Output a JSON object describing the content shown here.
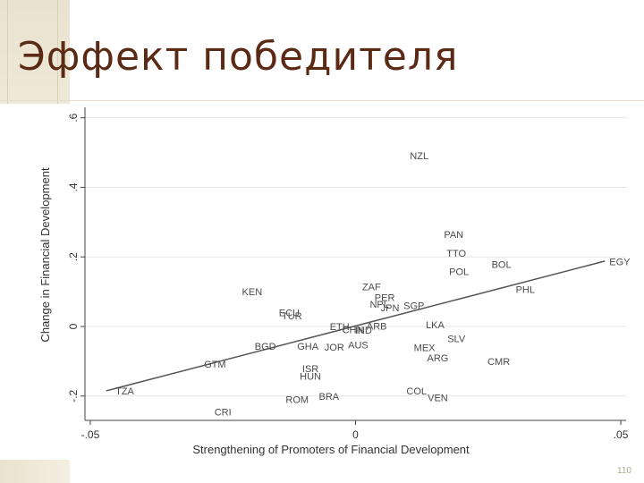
{
  "slide": {
    "title": "Эффект победителя",
    "page_number": "110"
  },
  "chart_data": {
    "type": "scatter",
    "title": "",
    "xlabel": "Strengthening of Promoters of Financial Development",
    "ylabel": "Change in Financial Development",
    "xlim": [
      -0.051,
      0.051
    ],
    "ylim": [
      -0.27,
      0.63
    ],
    "xticks": [
      -0.05,
      0,
      0.05
    ],
    "xtick_labels": [
      "-.05",
      "0",
      ".05"
    ],
    "yticks": [
      -0.2,
      0,
      0.2,
      0.4,
      0.6
    ],
    "ytick_labels": [
      "-.2",
      "0",
      ".2",
      ".4",
      ".6"
    ],
    "grid": "horizontal",
    "fit_line": {
      "x": [
        -0.047,
        0.047
      ],
      "y": [
        -0.185,
        0.188
      ]
    },
    "points": [
      {
        "label": "NZL",
        "x": 0.012,
        "y": 0.488
      },
      {
        "label": "PAN",
        "x": 0.0185,
        "y": 0.262
      },
      {
        "label": "TTO",
        "x": 0.019,
        "y": 0.208
      },
      {
        "label": "POL",
        "x": 0.0195,
        "y": 0.155
      },
      {
        "label": "BOL",
        "x": 0.0275,
        "y": 0.176
      },
      {
        "label": "EGY",
        "x": 0.0498,
        "y": 0.183
      },
      {
        "label": "PHL",
        "x": 0.032,
        "y": 0.104
      },
      {
        "label": "KEN",
        "x": -0.0195,
        "y": 0.098
      },
      {
        "label": "ZAF",
        "x": 0.003,
        "y": 0.111
      },
      {
        "label": "PER",
        "x": 0.0055,
        "y": 0.081
      },
      {
        "label": "NPL",
        "x": 0.0045,
        "y": 0.061
      },
      {
        "label": "SGP",
        "x": 0.011,
        "y": 0.058
      },
      {
        "label": "JPN",
        "x": 0.0065,
        "y": 0.051
      },
      {
        "label": "ECU",
        "x": -0.0125,
        "y": 0.037
      },
      {
        "label": "TUR",
        "x": -0.012,
        "y": 0.028
      },
      {
        "label": "ETH",
        "x": -0.003,
        "y": -0.003
      },
      {
        "label": "CHN",
        "x": -0.0005,
        "y": -0.012
      },
      {
        "label": "IND",
        "x": 0.0015,
        "y": -0.013
      },
      {
        "label": "ARB",
        "x": 0.004,
        "y": -0.001
      },
      {
        "label": "LKA",
        "x": 0.015,
        "y": 0.002
      },
      {
        "label": "SLV",
        "x": 0.019,
        "y": -0.037
      },
      {
        "label": "BGD",
        "x": -0.017,
        "y": -0.059
      },
      {
        "label": "GHA",
        "x": -0.009,
        "y": -0.059
      },
      {
        "label": "JOR",
        "x": -0.004,
        "y": -0.062
      },
      {
        "label": "AUS",
        "x": 0.0005,
        "y": -0.056
      },
      {
        "label": "MEX",
        "x": 0.013,
        "y": -0.063
      },
      {
        "label": "ARG",
        "x": 0.0155,
        "y": -0.093
      },
      {
        "label": "CMR",
        "x": 0.027,
        "y": -0.103
      },
      {
        "label": "GTM",
        "x": -0.0265,
        "y": -0.111
      },
      {
        "label": "ISR",
        "x": -0.0085,
        "y": -0.124
      },
      {
        "label": "HUN",
        "x": -0.0085,
        "y": -0.146
      },
      {
        "label": "TZA",
        "x": -0.0435,
        "y": -0.188
      },
      {
        "label": "COL",
        "x": 0.0115,
        "y": -0.188
      },
      {
        "label": "ROM",
        "x": -0.011,
        "y": -0.212
      },
      {
        "label": "BRA",
        "x": -0.005,
        "y": -0.203
      },
      {
        "label": "VEN",
        "x": 0.0155,
        "y": -0.207
      },
      {
        "label": "CRI",
        "x": -0.025,
        "y": -0.249
      }
    ]
  }
}
